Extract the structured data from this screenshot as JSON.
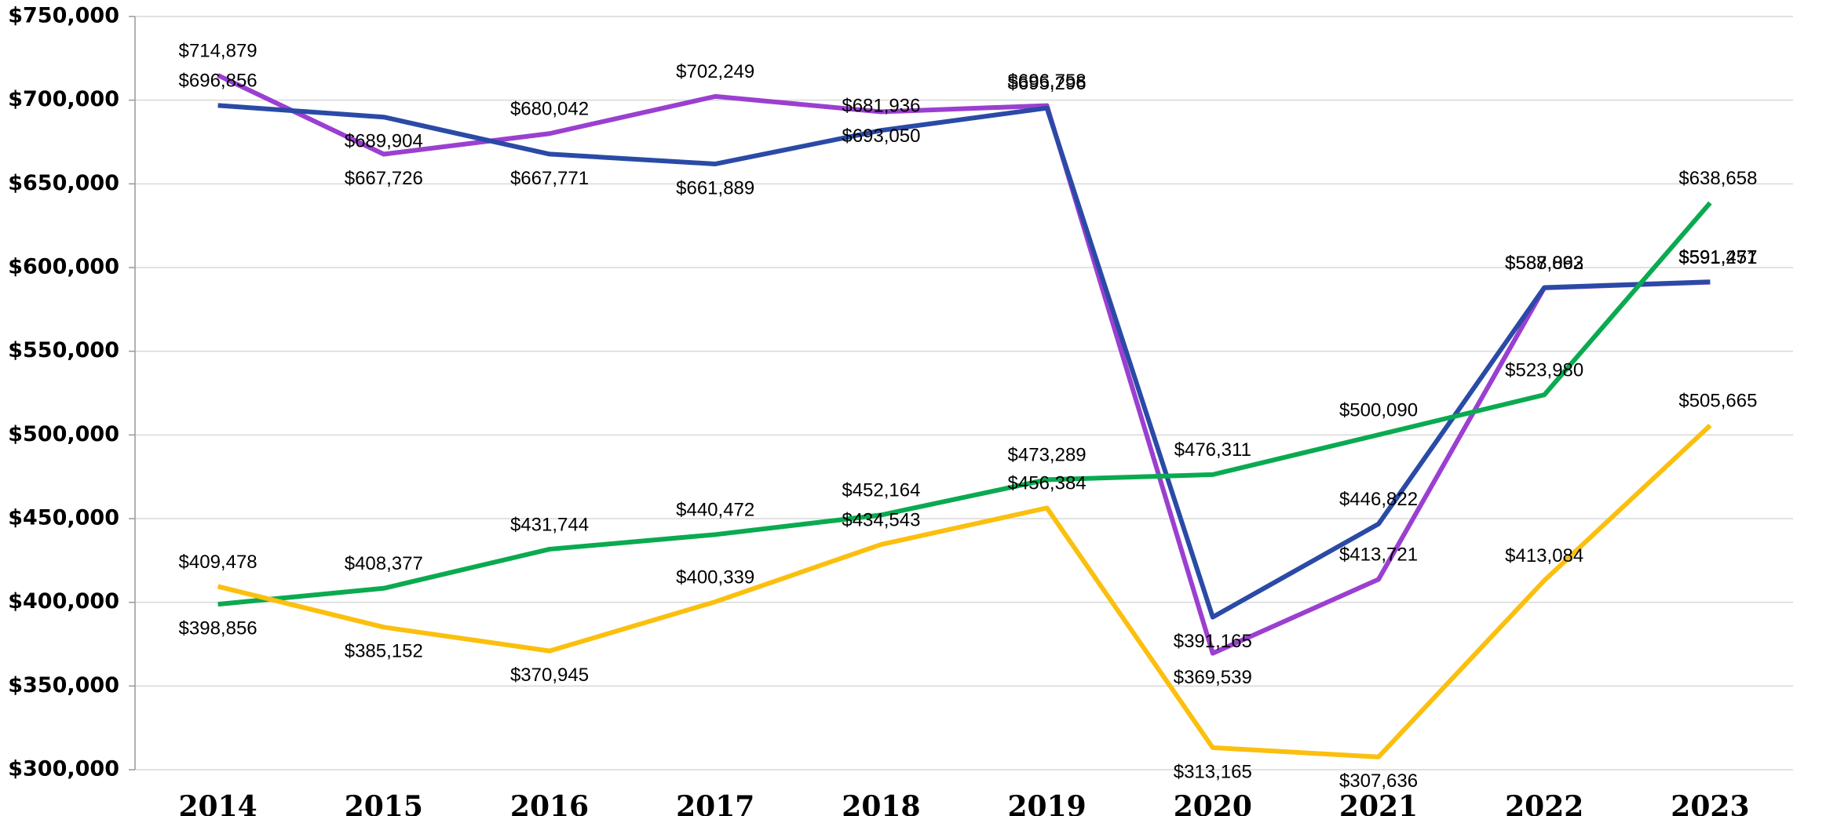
{
  "chart_data": {
    "type": "line",
    "categories": [
      "2014",
      "2015",
      "2016",
      "2017",
      "2018",
      "2019",
      "2020",
      "2021",
      "2022",
      "2023"
    ],
    "series": [
      {
        "color": "#9b3fd1",
        "label_style": "bold",
        "values": [
          714879,
          667726,
          680042,
          702249,
          693050,
          696758,
          369539,
          413721,
          587893,
          591271
        ],
        "value_labels": [
          "$714,879",
          "$667,726",
          "$680,042",
          "$702,249",
          "$693,050",
          "$696,758",
          "$369,539",
          "$413,721",
          "$587,893",
          "$591,271"
        ]
      },
      {
        "color": "#2a4aa6",
        "label_style": "italic",
        "values": [
          696856,
          689904,
          667771,
          661889,
          681936,
          695296,
          391165,
          446822,
          588062,
          591457
        ],
        "value_labels": [
          "$696,856",
          "$689,904",
          "$667,771",
          "$661,889",
          "$681,936",
          "$695,296",
          "$391,165",
          "$446,822",
          "$588,062",
          "$591,457"
        ]
      },
      {
        "color": "#0aaa50",
        "label_style": "bold",
        "values": [
          398856,
          408377,
          431744,
          440472,
          452164,
          473289,
          476311,
          500090,
          523980,
          638658
        ],
        "value_labels": [
          "$398,856",
          "$408,377",
          "$431,744",
          "$440,472",
          "$452,164",
          "$473,289",
          "$476,311",
          "$500,090",
          "$523,980",
          "$638,658"
        ]
      },
      {
        "color": "#fbbf0e",
        "label_style": "italic",
        "values": [
          409478,
          385152,
          370945,
          400339,
          434543,
          456384,
          313165,
          307636,
          413084,
          505665
        ],
        "value_labels": [
          "$409,478",
          "$385,152",
          "$370,945",
          "$400,339",
          "$434,543",
          "$456,384",
          "$313,165",
          "$307,636",
          "$413,084",
          "$505,665"
        ]
      }
    ],
    "ylim": [
      300000,
      750000
    ],
    "yticks": [
      {
        "value": 300000,
        "label": "$300,000"
      },
      {
        "value": 350000,
        "label": "$350,000"
      },
      {
        "value": 400000,
        "label": "$400,000"
      },
      {
        "value": 450000,
        "label": "$450,000"
      },
      {
        "value": 500000,
        "label": "$500,000"
      },
      {
        "value": 550000,
        "label": "$550,000"
      },
      {
        "value": 600000,
        "label": "$600,000"
      },
      {
        "value": 650000,
        "label": "$650,000"
      },
      {
        "value": 700000,
        "label": "$700,000"
      },
      {
        "value": 750000,
        "label": "$750,000"
      }
    ],
    "grid": true
  }
}
